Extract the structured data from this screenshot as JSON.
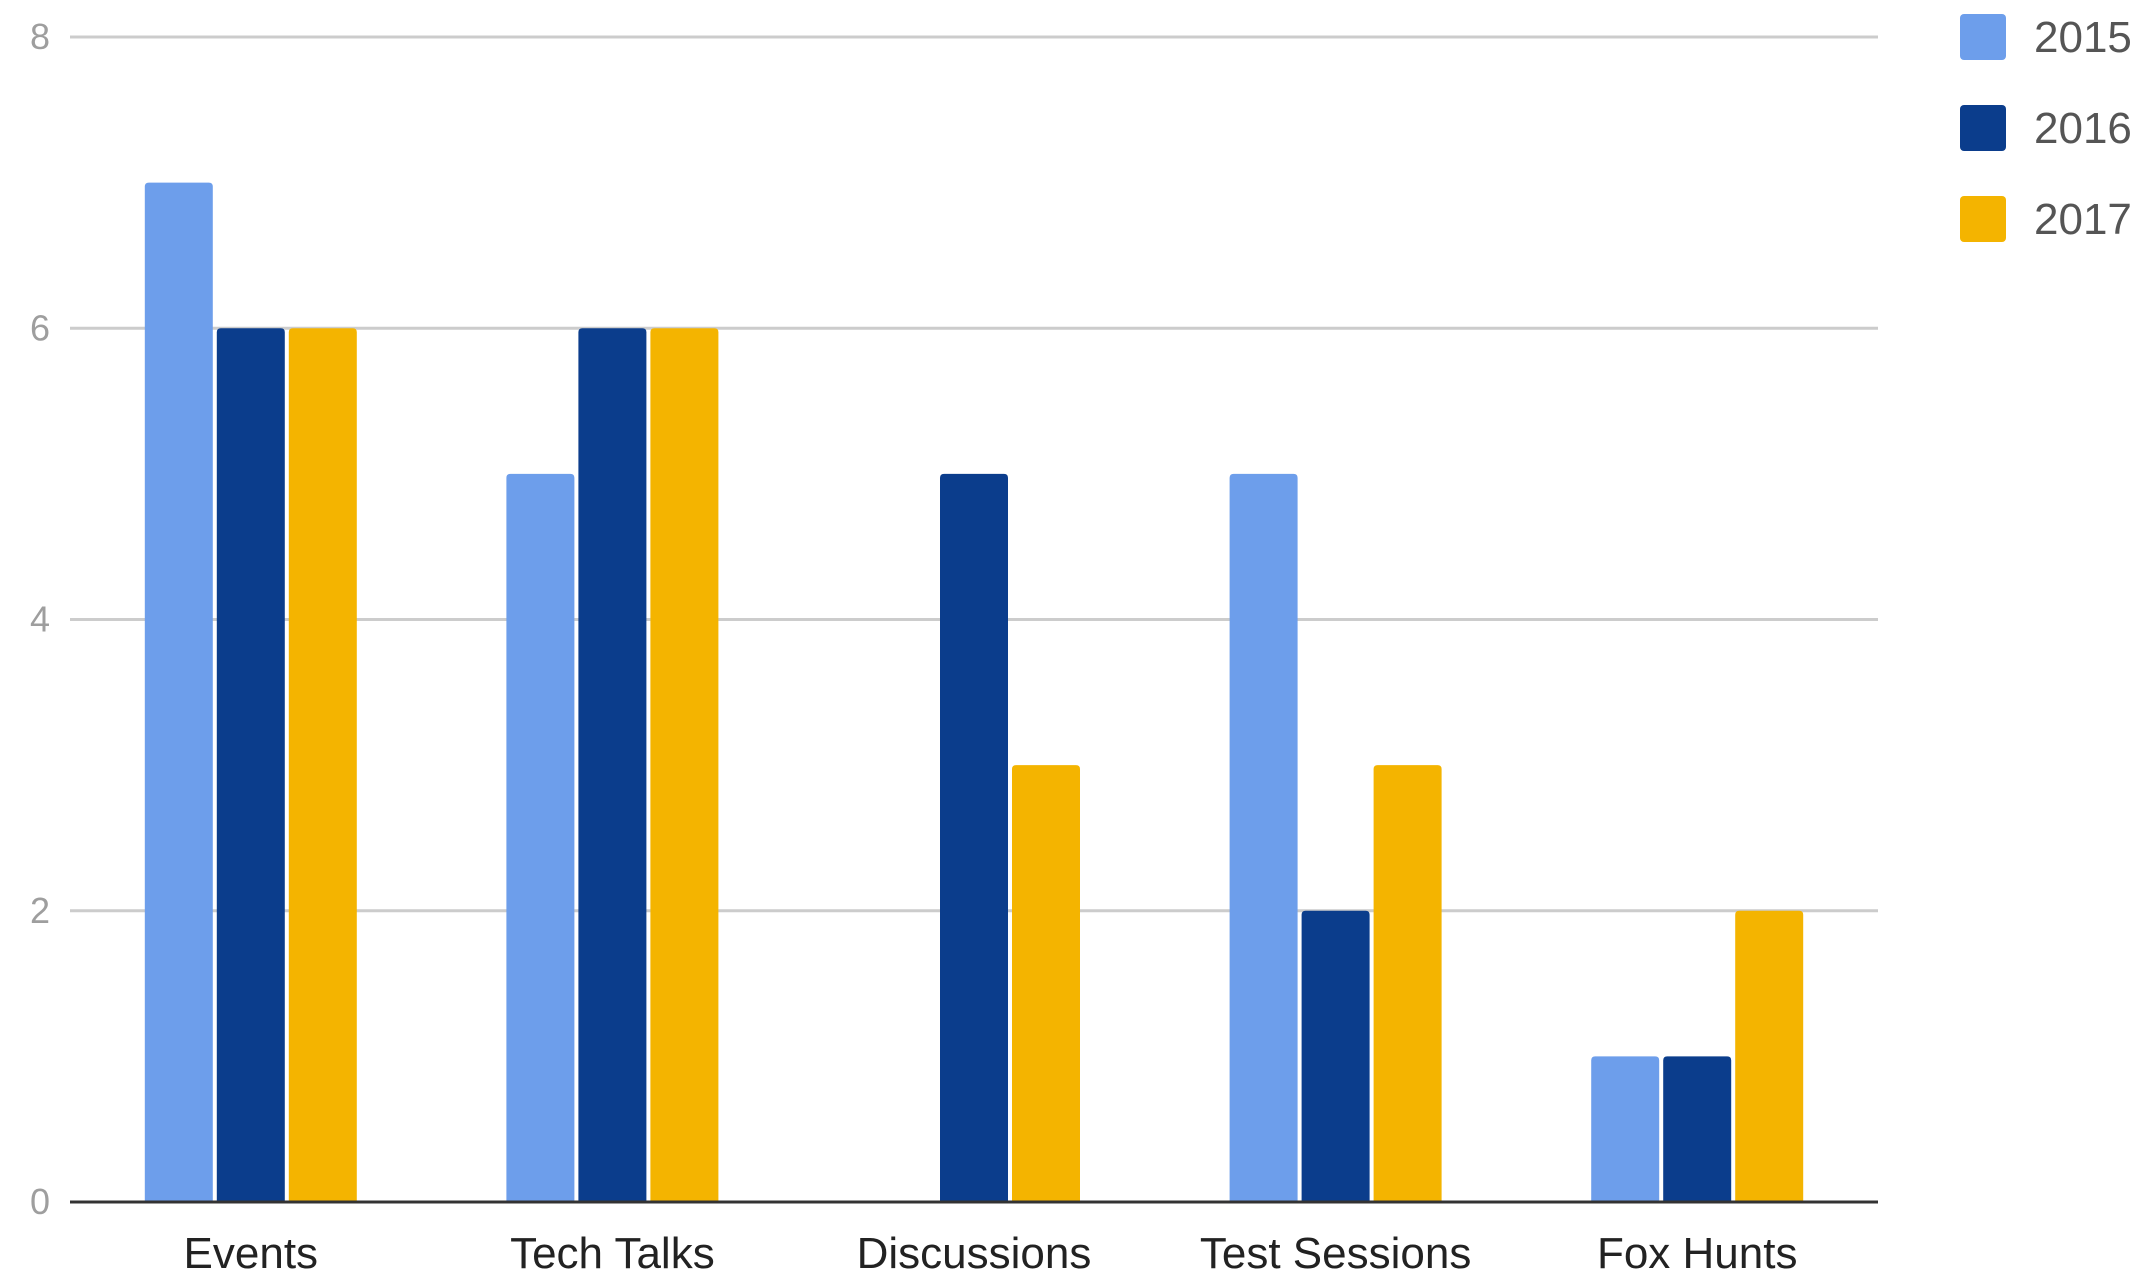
{
  "chart_data": {
    "type": "bar",
    "title": "",
    "xlabel": "",
    "ylabel": "",
    "categories": [
      "Events",
      "Tech Talks",
      "Discussions",
      "Test Sessions",
      "Fox Hunts"
    ],
    "series": [
      {
        "name": "2015",
        "color": "#6d9eeb",
        "values": [
          7,
          5,
          0,
          5,
          1
        ]
      },
      {
        "name": "2016",
        "color": "#0b3d8c",
        "values": [
          6,
          6,
          5,
          2,
          1
        ]
      },
      {
        "name": "2017",
        "color": "#f4b400",
        "values": [
          6,
          6,
          3,
          3,
          2
        ]
      }
    ],
    "ylim": [
      0,
      8
    ],
    "yticks": [
      "0",
      "2",
      "4",
      "6",
      "8"
    ],
    "grid": true,
    "legend_position": "top-right",
    "colors": {
      "grid": "#cccccc",
      "baseline": "#333333"
    }
  }
}
